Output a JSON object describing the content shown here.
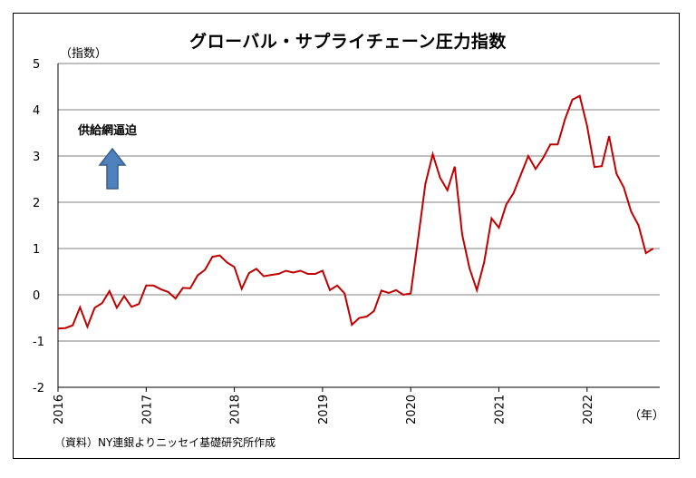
{
  "chart_data": {
    "type": "line",
    "title": "グローバル・サプライチェーン圧力指数",
    "ylabel": "（指数）",
    "xlabel": "（年）",
    "source": "（資料）NY連銀よりニッセイ基礎研究所作成",
    "annotation": "供給網逼迫",
    "ylim": [
      -2,
      5
    ],
    "yticks": [
      "5",
      "4",
      "3",
      "2",
      "1",
      "0",
      "-1",
      "-2"
    ],
    "xticks": [
      "2016",
      "2017",
      "2018",
      "2019",
      "2020",
      "2021",
      "2022"
    ],
    "grid": true,
    "line_color": "#c00000",
    "arrow_color": "#4f81bd",
    "series": [
      {
        "x": [
          "2016-01",
          "2016-02",
          "2016-03",
          "2016-04",
          "2016-05",
          "2016-06",
          "2016-07",
          "2016-08",
          "2016-09",
          "2016-10",
          "2016-11",
          "2016-12",
          "2017-01",
          "2017-02",
          "2017-03",
          "2017-04",
          "2017-05",
          "2017-06",
          "2017-07",
          "2017-08",
          "2017-09",
          "2017-10",
          "2017-11",
          "2017-12",
          "2018-01",
          "2018-02",
          "2018-03",
          "2018-04",
          "2018-05",
          "2018-06",
          "2018-07",
          "2018-08",
          "2018-09",
          "2018-10",
          "2018-11",
          "2018-12",
          "2019-01",
          "2019-02",
          "2019-03",
          "2019-04",
          "2019-05",
          "2019-06",
          "2019-07",
          "2019-08",
          "2019-09",
          "2019-10",
          "2019-11",
          "2019-12",
          "2020-01",
          "2020-02",
          "2020-03",
          "2020-04",
          "2020-05",
          "2020-06",
          "2020-07",
          "2020-08",
          "2020-09",
          "2020-10",
          "2020-11",
          "2020-12",
          "2021-01",
          "2021-02",
          "2021-03",
          "2021-04",
          "2021-05",
          "2021-06",
          "2021-07",
          "2021-08",
          "2021-09",
          "2021-10",
          "2021-11",
          "2021-12",
          "2022-01",
          "2022-02",
          "2022-03",
          "2022-04",
          "2022-05",
          "2022-06",
          "2022-07",
          "2022-08",
          "2022-09",
          "2022-10"
        ],
        "values": [
          -0.73,
          -0.72,
          -0.66,
          -0.27,
          -0.69,
          -0.28,
          -0.18,
          0.08,
          -0.28,
          -0.03,
          -0.26,
          -0.2,
          0.2,
          0.2,
          0.12,
          0.06,
          -0.08,
          0.15,
          0.14,
          0.42,
          0.54,
          0.82,
          0.85,
          0.7,
          0.6,
          0.13,
          0.47,
          0.56,
          0.4,
          0.43,
          0.45,
          0.52,
          0.48,
          0.52,
          0.45,
          0.45,
          0.52,
          0.1,
          0.2,
          0.03,
          -0.65,
          -0.5,
          -0.47,
          -0.35,
          0.09,
          0.04,
          0.1,
          0.0,
          0.03,
          1.2,
          2.4,
          3.04,
          2.53,
          2.26,
          2.77,
          1.3,
          0.57,
          0.1,
          0.71,
          1.65,
          1.45,
          1.95,
          2.2,
          2.6,
          3.0,
          2.72,
          2.95,
          3.25,
          3.25,
          3.8,
          4.22,
          4.3,
          3.65,
          2.76,
          2.78,
          3.43,
          2.62,
          2.32,
          1.8,
          1.5,
          0.9,
          1.0
        ]
      }
    ]
  }
}
